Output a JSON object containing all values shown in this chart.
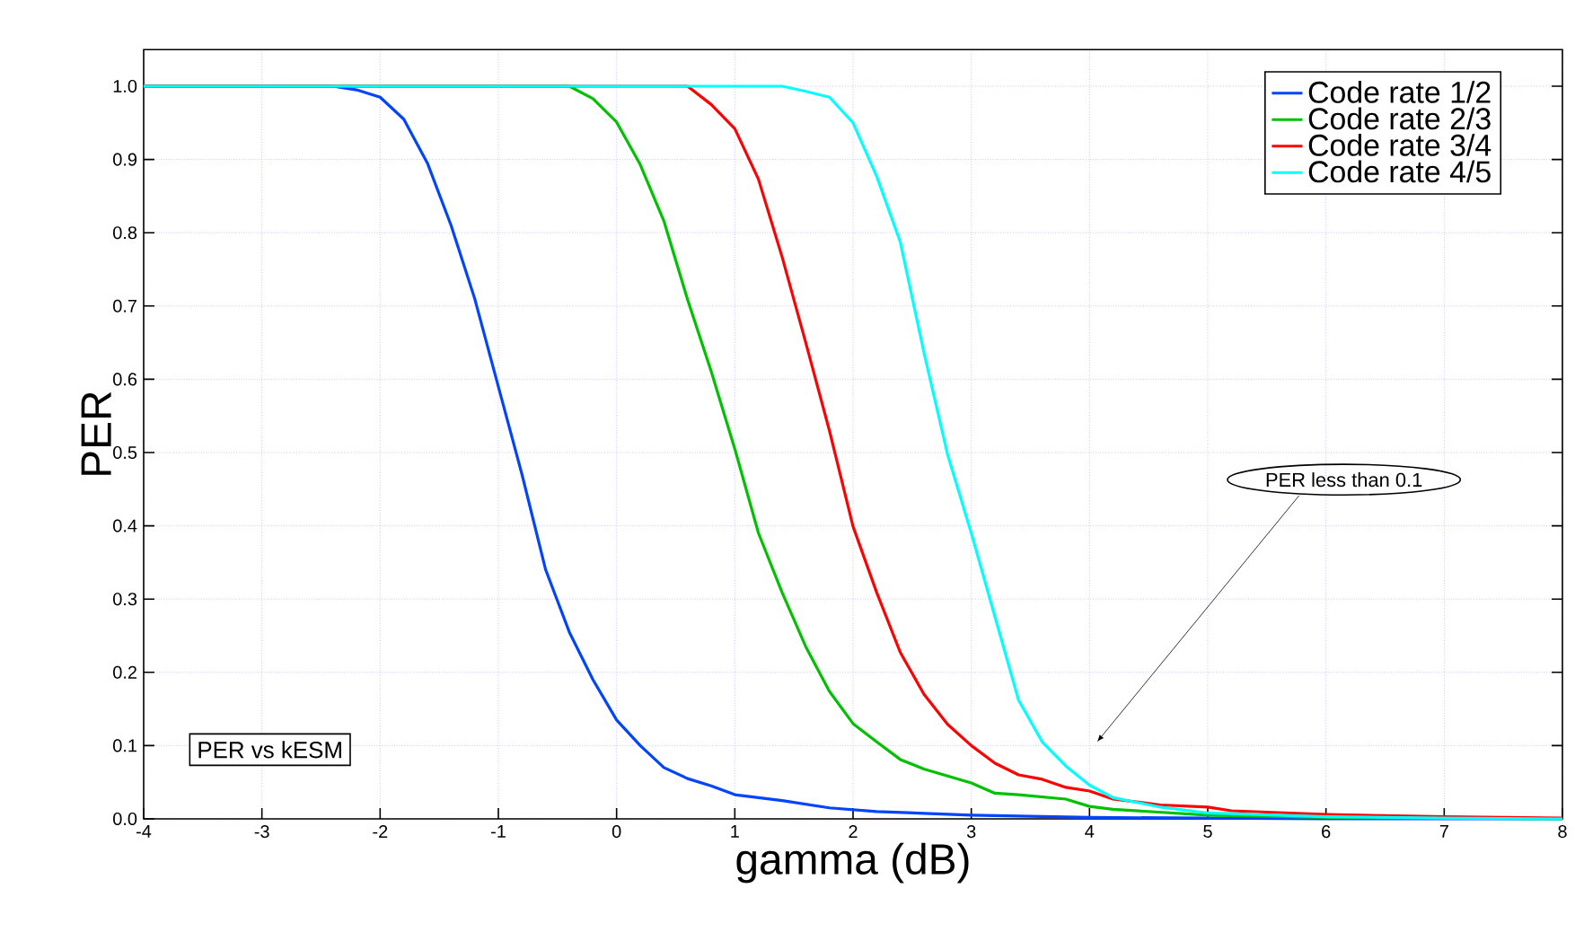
{
  "chart_data": {
    "type": "line",
    "xlabel": "gamma (dB)",
    "ylabel": "PER",
    "xlim": [
      -4,
      8
    ],
    "ylim": [
      0,
      1.05
    ],
    "xticks": [
      -4,
      -3,
      -2,
      -1,
      0,
      1,
      2,
      3,
      4,
      5,
      6,
      7,
      8
    ],
    "yticks": [
      {
        "value": 0,
        "label": "0.0"
      },
      {
        "value": 0.1,
        "label": "0.1"
      },
      {
        "value": 0.2,
        "label": "0.2"
      },
      {
        "value": 0.3,
        "label": "0.3"
      },
      {
        "value": 0.4,
        "label": "0.4"
      },
      {
        "value": 0.5,
        "label": "0.5"
      },
      {
        "value": 0.6,
        "label": "0.6"
      },
      {
        "value": 0.7,
        "label": "0.7"
      },
      {
        "value": 0.8,
        "label": "0.8"
      },
      {
        "value": 0.9,
        "label": "0.9"
      },
      {
        "value": 1,
        "label": "1.0"
      }
    ],
    "grid": true,
    "legend": "top right",
    "marker": "none",
    "line_style": "solid",
    "series": [
      {
        "name": "Code rate  1/2",
        "color": "#0044ff",
        "x": [
          -4,
          -2.4,
          -2.2,
          -2,
          -1.8,
          -1.6,
          -1.4,
          -1.2,
          -1,
          -0.8,
          -0.6,
          -0.4,
          -0.2,
          0,
          0.2,
          0.4,
          0.6,
          0.8,
          1,
          1.4,
          1.8,
          2.2,
          3,
          4,
          5,
          6,
          8
        ],
        "values": [
          1,
          1,
          0.995,
          0.985,
          0.955,
          0.895,
          0.81,
          0.71,
          0.59,
          0.47,
          0.34,
          0.255,
          0.19,
          0.135,
          0.1,
          0.07,
          0.055,
          0.045,
          0.033,
          0.025,
          0.015,
          0.01,
          0.005,
          0.002,
          0.001,
          0,
          0
        ]
      },
      {
        "name": "Code rate  2/3",
        "color": "#00c000",
        "x": [
          -4,
          -0.4,
          -0.2,
          0,
          0.2,
          0.4,
          0.6,
          0.8,
          1,
          1.2,
          1.4,
          1.6,
          1.8,
          2,
          2.2,
          2.4,
          2.6,
          3,
          3.2,
          3.4,
          3.8,
          4,
          4.2,
          5,
          6,
          7,
          8
        ],
        "values": [
          1,
          1,
          0.983,
          0.951,
          0.893,
          0.816,
          0.709,
          0.611,
          0.505,
          0.39,
          0.309,
          0.235,
          0.174,
          0.13,
          0.105,
          0.081,
          0.068,
          0.049,
          0.035,
          0.033,
          0.027,
          0.017,
          0.013,
          0.005,
          0.002,
          null,
          0
        ]
      },
      {
        "name": "Code rate  3/4",
        "color": "#ff0000",
        "x": [
          -4,
          0.6,
          0.8,
          1,
          1.2,
          1.4,
          1.6,
          1.8,
          2,
          2.2,
          2.4,
          2.6,
          2.8,
          3,
          3.2,
          3.4,
          3.6,
          3.8,
          4,
          4.2,
          4.6,
          5,
          5.2,
          6,
          7,
          8
        ],
        "values": [
          1,
          1,
          0.975,
          0.942,
          0.873,
          0.767,
          0.65,
          0.53,
          0.399,
          0.309,
          0.227,
          0.17,
          0.129,
          0.1,
          0.076,
          0.06,
          0.054,
          0.043,
          0.038,
          0.027,
          0.019,
          0.016,
          0.011,
          0.006,
          0.003,
          0.001
        ]
      },
      {
        "name": "Code rate  4/5",
        "color": "#00ffff",
        "x": [
          -4,
          1.4,
          1.6,
          1.8,
          2,
          2.2,
          2.4,
          2.6,
          2.8,
          3,
          3.2,
          3.4,
          3.6,
          3.8,
          4,
          4.2,
          4.6,
          5,
          6,
          7,
          8
        ],
        "values": [
          1,
          1,
          0.993,
          0.985,
          0.95,
          0.877,
          0.787,
          0.636,
          0.497,
          0.39,
          0.276,
          0.162,
          0.105,
          0.072,
          0.046,
          0.029,
          0.016,
          0.008,
          0.003,
          0.001,
          0
        ]
      }
    ],
    "annotations": [
      "PER vs kESM",
      "PER less than 0.1"
    ]
  }
}
